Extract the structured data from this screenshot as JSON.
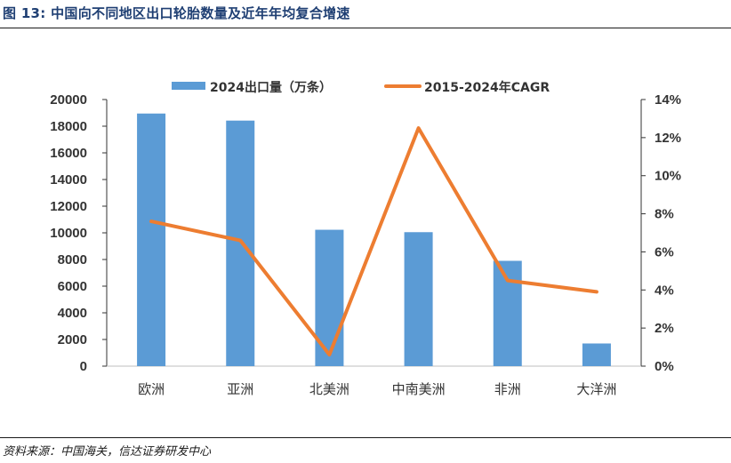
{
  "header": {
    "title": "图 13:  中国向不同地区出口轮胎数量及近年年均复合增速"
  },
  "footer": {
    "source": "资料来源：中国海关，信达证券研发中心"
  },
  "colors": {
    "bar": "#5b9bd5",
    "line": "#ed7d31",
    "title": "#1f3f73"
  },
  "chart_data": {
    "type": "bar",
    "legend_position": "top",
    "grid": false,
    "categories": [
      "欧洲",
      "亚洲",
      "北美洲",
      "中南美洲",
      "非洲",
      "大洋洲"
    ],
    "series": [
      {
        "name": "2024出口量（万条）",
        "type": "bar",
        "axis": "left",
        "values": [
          18950,
          18420,
          10230,
          10050,
          7900,
          1700
        ]
      },
      {
        "name": "2015-2024年CAGR",
        "type": "line",
        "axis": "right",
        "values": [
          7.6,
          6.6,
          0.6,
          12.5,
          4.5,
          3.9
        ]
      }
    ],
    "y_left": {
      "ylim": [
        0,
        20000
      ],
      "ticks": [
        "0",
        "2000",
        "4000",
        "6000",
        "8000",
        "10000",
        "12000",
        "14000",
        "16000",
        "18000",
        "20000"
      ]
    },
    "y_right": {
      "ylim": [
        0,
        14
      ],
      "ticks": [
        "0%",
        "2%",
        "4%",
        "6%",
        "8%",
        "10%",
        "12%",
        "14%"
      ]
    }
  }
}
